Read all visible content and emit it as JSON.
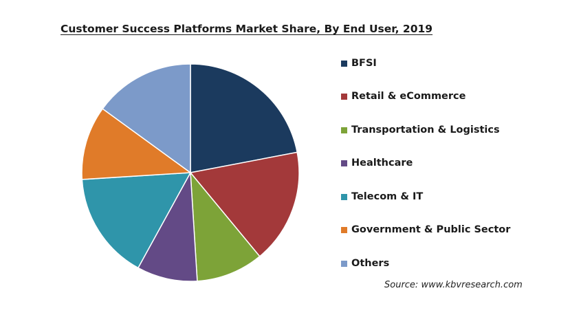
{
  "chart_data": {
    "type": "pie",
    "title": "Customer Success Platforms Market Share, By End User, 2019",
    "source": "Source: www.kbvresearch.com",
    "start_angle_deg": 0,
    "direction": "clockwise",
    "slices": [
      {
        "label": "BFSI",
        "value": 22.0,
        "color": "#1b3a5e"
      },
      {
        "label": "Retail & eCommerce",
        "value": 17.0,
        "color": "#a3393a"
      },
      {
        "label": "Transportation & Logistics",
        "value": 10.0,
        "color": "#7da338"
      },
      {
        "label": "Healthcare",
        "value": 9.0,
        "color": "#634a86"
      },
      {
        "label": "Telecom & IT",
        "value": 16.0,
        "color": "#2f95aa"
      },
      {
        "label": "Government & Public Sector",
        "value": 11.0,
        "color": "#e07b29"
      },
      {
        "label": "Others",
        "value": 15.0,
        "color": "#7c9ac9"
      }
    ]
  }
}
